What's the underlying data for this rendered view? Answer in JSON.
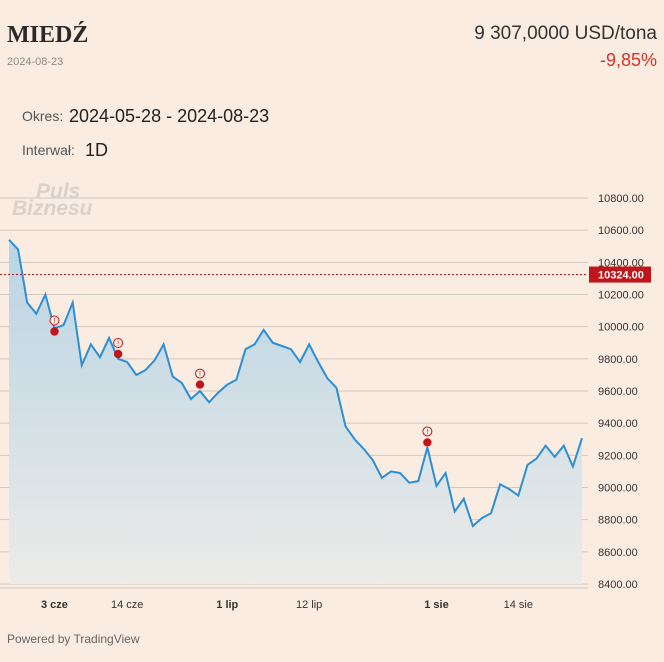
{
  "header": {
    "title": "MIEDŹ",
    "date": "2024-08-23",
    "price": "9 307,0000 USD/tona",
    "change": "-9,85%"
  },
  "controls": {
    "period_label": "Okres:",
    "period_value": "2024-05-28 - 2024-08-23",
    "interval_label": "Interwał:",
    "interval_value": "1D"
  },
  "watermark": {
    "line1": "Puls",
    "line2": "Biznesu"
  },
  "footer": {
    "powered_by": "Powered by TradingView"
  },
  "colors": {
    "line": "#2b8fd6",
    "area_top": "#b9d4e4",
    "area_bottom": "#ecebe8",
    "reference": "#c0161b",
    "marker": "#c0161b",
    "background": "#fbece1"
  },
  "chart_data": {
    "type": "area",
    "ylim": [
      8400,
      10800
    ],
    "yticks": [
      "10800.00",
      "10600.00",
      "10400.00",
      "10200.00",
      "10000.00",
      "9800.00",
      "9600.00",
      "9400.00",
      "9200.00",
      "9000.00",
      "8800.00",
      "8600.00",
      "8400.00"
    ],
    "reference_line": {
      "value": 10324,
      "label": "10324.00"
    },
    "xticks": [
      {
        "label": "3 cze",
        "index": 5,
        "bold": true
      },
      {
        "label": "14 cze",
        "index": 13,
        "bold": false
      },
      {
        "label": "1 lip",
        "index": 24,
        "bold": true
      },
      {
        "label": "12 lip",
        "index": 33,
        "bold": false
      },
      {
        "label": "1 sie",
        "index": 47,
        "bold": true
      },
      {
        "label": "14 sie",
        "index": 56,
        "bold": false
      }
    ],
    "values": [
      10540,
      10480,
      10150,
      10080,
      10200,
      9990,
      10010,
      10150,
      9760,
      9890,
      9810,
      9930,
      9800,
      9780,
      9700,
      9730,
      9790,
      9890,
      9690,
      9650,
      9550,
      9600,
      9530,
      9590,
      9640,
      9670,
      9860,
      9890,
      9980,
      9900,
      9880,
      9860,
      9780,
      9890,
      9780,
      9680,
      9620,
      9380,
      9300,
      9240,
      9170,
      9060,
      9100,
      9090,
      9030,
      9040,
      9250,
      9010,
      9090,
      8850,
      8930,
      8760,
      8810,
      8840,
      9020,
      8990,
      8950,
      9140,
      9180,
      9260,
      9190,
      9260,
      9130,
      9307
    ],
    "events": [
      {
        "index": 5,
        "value": 9970,
        "label": "!"
      },
      {
        "index": 12,
        "value": 9830,
        "label": "!"
      },
      {
        "index": 21,
        "value": 9640,
        "label": "!"
      },
      {
        "index": 46,
        "value": 9280,
        "label": "!"
      }
    ]
  }
}
